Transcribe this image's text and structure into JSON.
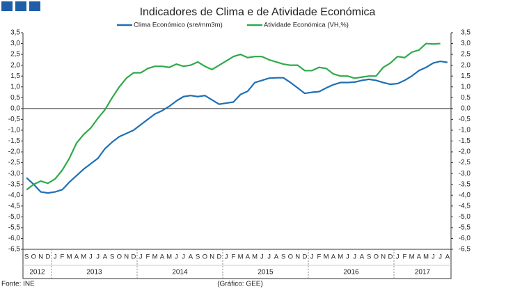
{
  "chart_data": {
    "type": "line",
    "title": "Indicadores de Clima e de Atividade Económica",
    "source": "Fonte: INE",
    "credit": "(Gráfico: GEE)",
    "categories": [
      "S",
      "O",
      "N",
      "D",
      "J",
      "F",
      "M",
      "A",
      "M",
      "J",
      "J",
      "A",
      "S",
      "O",
      "N",
      "D",
      "J",
      "F",
      "M",
      "A",
      "M",
      "J",
      "J",
      "A",
      "S",
      "O",
      "N",
      "D",
      "J",
      "F",
      "M",
      "A",
      "M",
      "J",
      "J",
      "A",
      "S",
      "O",
      "N",
      "D",
      "J",
      "F",
      "M",
      "A",
      "M",
      "J",
      "J",
      "A",
      "S",
      "O",
      "N",
      "D",
      "J",
      "F",
      "M",
      "A",
      "M",
      "J",
      "J",
      "A"
    ],
    "years": [
      "2012",
      "2013",
      "2014",
      "2015",
      "2016",
      "2017"
    ],
    "series": [
      {
        "name": "Clima Económico (sre/mm3m)",
        "color": "#1f6fb5",
        "values": [
          -3.2,
          -3.5,
          -3.85,
          -3.9,
          -3.85,
          -3.75,
          -3.4,
          -3.1,
          -2.8,
          -2.55,
          -2.3,
          -1.85,
          -1.55,
          -1.3,
          -1.15,
          -1.0,
          -0.75,
          -0.5,
          -0.25,
          -0.1,
          0.1,
          0.35,
          0.55,
          0.6,
          0.55,
          0.6,
          0.4,
          0.2,
          0.25,
          0.3,
          0.65,
          0.8,
          1.2,
          1.3,
          1.4,
          1.42,
          1.42,
          1.2,
          0.95,
          0.7,
          0.75,
          0.78,
          0.95,
          1.1,
          1.2,
          1.2,
          1.22,
          1.3,
          1.35,
          1.3,
          1.2,
          1.12,
          1.15,
          1.3,
          1.5,
          1.75,
          1.9,
          2.1,
          2.18,
          2.13
        ]
      },
      {
        "name": "Atividade Económica (VH,%)",
        "color": "#2eaa4a",
        "values": [
          -3.75,
          -3.5,
          -3.35,
          -3.45,
          -3.25,
          -2.85,
          -2.3,
          -1.6,
          -1.2,
          -0.9,
          -0.45,
          -0.05,
          0.5,
          1.0,
          1.4,
          1.65,
          1.65,
          1.85,
          1.95,
          1.95,
          1.9,
          2.05,
          1.95,
          2.0,
          2.15,
          1.95,
          1.8,
          2.0,
          2.2,
          2.4,
          2.5,
          2.35,
          2.4,
          2.4,
          2.25,
          2.15,
          2.05,
          2.0,
          2.0,
          1.75,
          1.75,
          1.9,
          1.85,
          1.6,
          1.5,
          1.5,
          1.4,
          1.45,
          1.5,
          1.5,
          1.9,
          2.1,
          2.4,
          2.35,
          2.6,
          2.7,
          3.0,
          2.98,
          3.0,
          null
        ]
      }
    ],
    "ylim": [
      -6.5,
      3.5
    ],
    "yticks": [
      {
        "value": 3.5,
        "label": "3,5"
      },
      {
        "value": 3,
        "label": "3,0"
      },
      {
        "value": 2.5,
        "label": "2,5"
      },
      {
        "value": 2,
        "label": "2,0"
      },
      {
        "value": 1.5,
        "label": "1,5"
      },
      {
        "value": 1,
        "label": "1,0"
      },
      {
        "value": 0.5,
        "label": "0,5"
      },
      {
        "value": 0,
        "label": "0,0"
      },
      {
        "value": -0.5,
        "label": "-0,5"
      },
      {
        "value": -1,
        "label": "-1,0"
      },
      {
        "value": -1.5,
        "label": "-1,5"
      },
      {
        "value": -2,
        "label": "-2,0"
      },
      {
        "value": -2.5,
        "label": "-2,5"
      },
      {
        "value": -3,
        "label": "-3,0"
      },
      {
        "value": -3.5,
        "label": "-3,5"
      },
      {
        "value": -4,
        "label": "-4,0"
      },
      {
        "value": -4.5,
        "label": "-4,5"
      },
      {
        "value": -5,
        "label": "-5,0"
      },
      {
        "value": -5.5,
        "label": "-5,5"
      },
      {
        "value": -6,
        "label": "-6,0"
      },
      {
        "value": -6.5,
        "label": "-6,5"
      }
    ],
    "y2lim": [
      -6.5,
      3.5
    ],
    "y2ticks": [
      {
        "value": 3.5,
        "label": "3,5"
      },
      {
        "value": 3,
        "label": "3,0"
      },
      {
        "value": 2.5,
        "label": "2,5"
      },
      {
        "value": 2,
        "label": "2,0"
      },
      {
        "value": 1.5,
        "label": "1,5"
      },
      {
        "value": 1,
        "label": "1,0"
      },
      {
        "value": 0.5,
        "label": "0,5"
      },
      {
        "value": 0,
        "label": "0,0"
      },
      {
        "value": -0.5,
        "label": "-0,5"
      },
      {
        "value": -1,
        "label": "-1,0"
      },
      {
        "value": -1.5,
        "label": "-1,5"
      },
      {
        "value": -2,
        "label": "-2,0"
      },
      {
        "value": -2.5,
        "label": "-2,5"
      },
      {
        "value": -3,
        "label": "-3,0"
      },
      {
        "value": -3.5,
        "label": "-3,5"
      },
      {
        "value": -4,
        "label": "-4,0"
      },
      {
        "value": -4.5,
        "label": "-4,5"
      },
      {
        "value": -5,
        "label": "-5,0"
      },
      {
        "value": -5.5,
        "label": "-5,5"
      },
      {
        "value": -6,
        "label": "-6,0"
      },
      {
        "value": -6.5,
        "label": "-6,5"
      }
    ],
    "grid": false
  }
}
